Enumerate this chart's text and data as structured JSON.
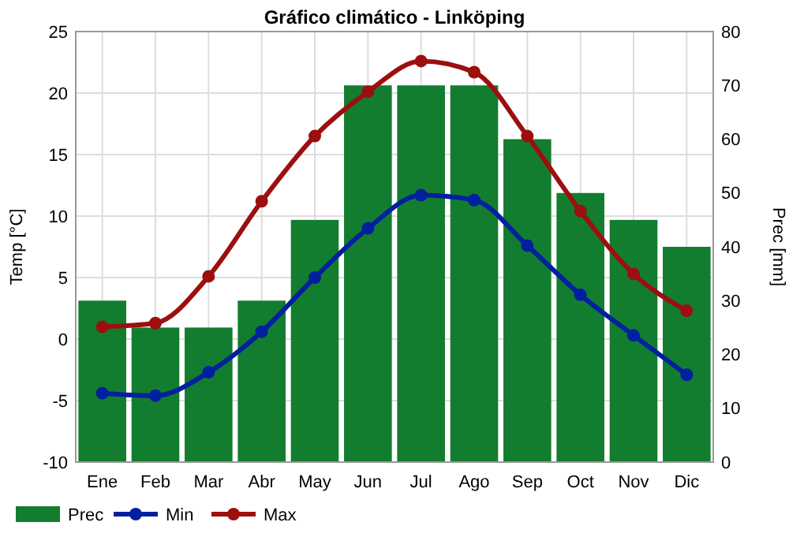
{
  "chart_data": {
    "type": "bar",
    "title": "Gráfico climático - Linköping",
    "ylabel": "Temp [°C]",
    "y2label": "Prec [mm]",
    "categories": [
      "Ene",
      "Feb",
      "Mar",
      "Abr",
      "May",
      "Jun",
      "Jul",
      "Ago",
      "Sep",
      "Oct",
      "Nov",
      "Dic"
    ],
    "series": [
      {
        "name": "Prec",
        "axis": "y2",
        "color": "#137d2f",
        "values": [
          30,
          25,
          25,
          30,
          45,
          70,
          70,
          70,
          60,
          50,
          45,
          40
        ]
      },
      {
        "name": "Min",
        "type": "line",
        "color": "#00209f",
        "values": [
          -4.4,
          -4.6,
          -2.7,
          0.6,
          5.0,
          9.0,
          11.7,
          11.3,
          7.6,
          3.6,
          0.3,
          -2.9
        ]
      },
      {
        "name": "Max",
        "type": "line",
        "color": "#9c0f0f",
        "values": [
          1.0,
          1.3,
          5.1,
          11.2,
          16.5,
          20.1,
          22.6,
          21.7,
          16.5,
          10.4,
          5.3,
          2.3
        ]
      }
    ],
    "ylim": [
      -10,
      25
    ],
    "yticks": [
      -10,
      -5,
      0,
      5,
      10,
      15,
      20,
      25
    ],
    "y2lim": [
      0,
      80
    ],
    "y2ticks": [
      0,
      10,
      20,
      30,
      40,
      50,
      60,
      70,
      80
    ],
    "grid": true,
    "legend": "bottom",
    "marker": "circle",
    "line_style": "solid"
  }
}
